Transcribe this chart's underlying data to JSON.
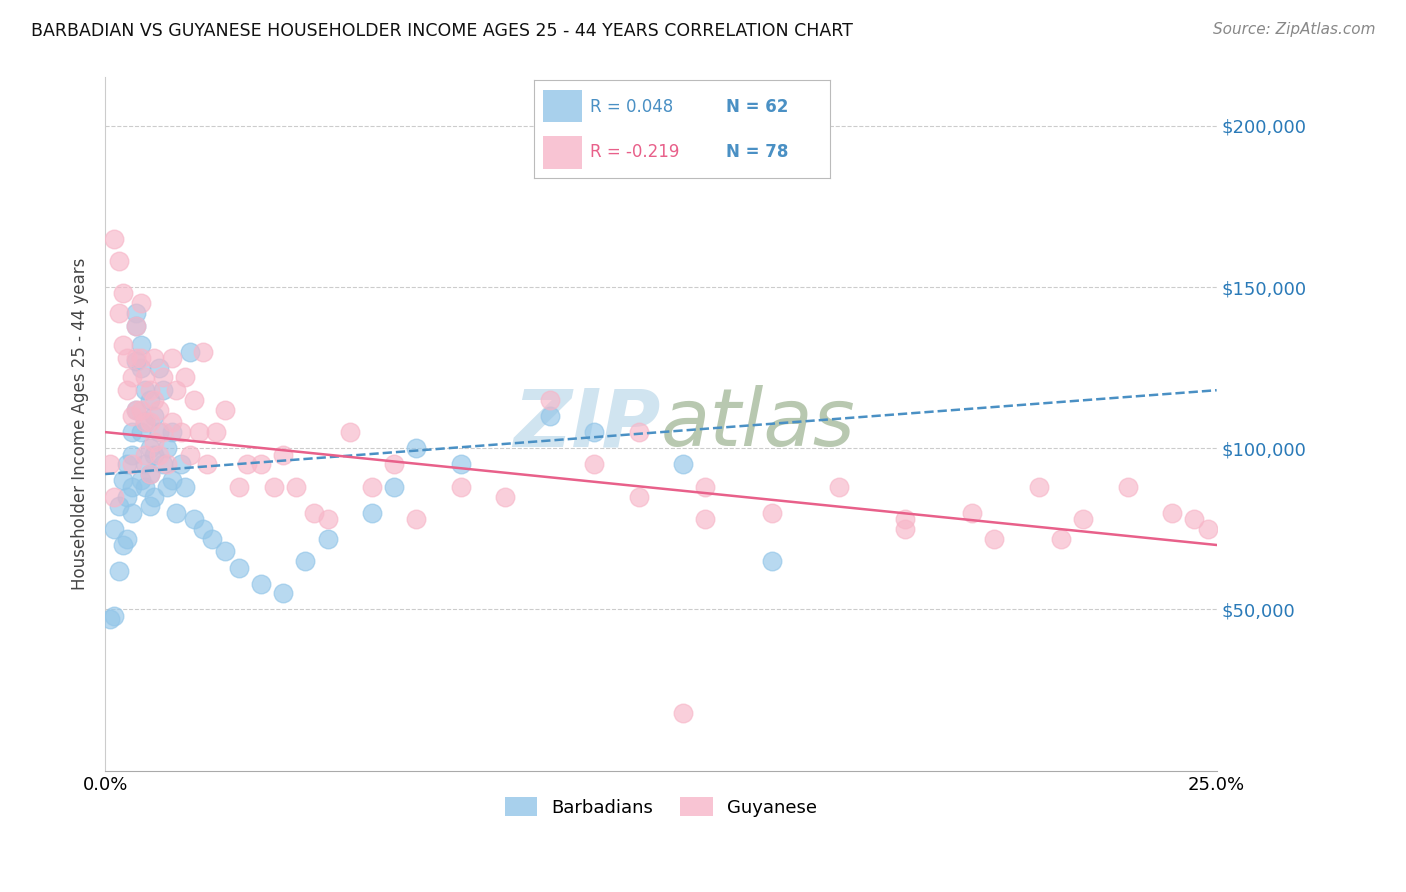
{
  "title": "BARBADIAN VS GUYANESE HOUSEHOLDER INCOME AGES 25 - 44 YEARS CORRELATION CHART",
  "source": "Source: ZipAtlas.com",
  "ylabel": "Householder Income Ages 25 - 44 years",
  "xlim": [
    0.0,
    0.25
  ],
  "ylim": [
    0,
    215000
  ],
  "xticks": [
    0.0,
    0.05,
    0.1,
    0.15,
    0.2,
    0.25
  ],
  "xtick_labels": [
    "0.0%",
    "",
    "",
    "",
    "",
    "25.0%"
  ],
  "ytick_values": [
    50000,
    100000,
    150000,
    200000
  ],
  "ytick_labels": [
    "$50,000",
    "$100,000",
    "$150,000",
    "$200,000"
  ],
  "barbadian_color": "#92c5e8",
  "guyanese_color": "#f7b6c8",
  "trendline_barbadian_color": "#4a90c4",
  "trendline_guyanese_color": "#e8608a",
  "watermark_color": "#d0e4f0",
  "legend_R1": "R = 0.048",
  "legend_N1": "N = 62",
  "legend_R2": "R = -0.219",
  "legend_N2": "N = 78",
  "R1_color": "#4a90c4",
  "N1_color": "#4a90c4",
  "R2_color": "#e8608a",
  "N2_color": "#4a90c4",
  "barbadian_x": [
    0.001,
    0.002,
    0.002,
    0.003,
    0.003,
    0.004,
    0.004,
    0.005,
    0.005,
    0.005,
    0.006,
    0.006,
    0.006,
    0.006,
    0.007,
    0.007,
    0.007,
    0.007,
    0.008,
    0.008,
    0.008,
    0.008,
    0.009,
    0.009,
    0.009,
    0.009,
    0.01,
    0.01,
    0.01,
    0.01,
    0.011,
    0.011,
    0.011,
    0.012,
    0.012,
    0.013,
    0.013,
    0.014,
    0.014,
    0.015,
    0.015,
    0.016,
    0.017,
    0.018,
    0.019,
    0.02,
    0.022,
    0.024,
    0.027,
    0.03,
    0.035,
    0.04,
    0.045,
    0.05,
    0.06,
    0.065,
    0.07,
    0.08,
    0.1,
    0.11,
    0.13,
    0.15
  ],
  "barbadian_y": [
    47000,
    48000,
    75000,
    62000,
    82000,
    70000,
    90000,
    85000,
    95000,
    72000,
    105000,
    98000,
    88000,
    80000,
    142000,
    138000,
    127000,
    112000,
    132000,
    125000,
    105000,
    90000,
    118000,
    108000,
    95000,
    88000,
    115000,
    100000,
    92000,
    82000,
    110000,
    98000,
    85000,
    125000,
    105000,
    118000,
    95000,
    100000,
    88000,
    105000,
    90000,
    80000,
    95000,
    88000,
    130000,
    78000,
    75000,
    72000,
    68000,
    63000,
    58000,
    55000,
    65000,
    72000,
    80000,
    88000,
    100000,
    95000,
    110000,
    105000,
    95000,
    65000
  ],
  "guyanese_x": [
    0.001,
    0.002,
    0.002,
    0.003,
    0.003,
    0.004,
    0.004,
    0.005,
    0.005,
    0.006,
    0.006,
    0.006,
    0.007,
    0.007,
    0.007,
    0.008,
    0.008,
    0.008,
    0.009,
    0.009,
    0.009,
    0.01,
    0.01,
    0.01,
    0.011,
    0.011,
    0.011,
    0.012,
    0.012,
    0.013,
    0.013,
    0.014,
    0.015,
    0.015,
    0.016,
    0.017,
    0.018,
    0.019,
    0.02,
    0.021,
    0.022,
    0.023,
    0.025,
    0.027,
    0.03,
    0.032,
    0.035,
    0.038,
    0.04,
    0.043,
    0.047,
    0.05,
    0.055,
    0.06,
    0.065,
    0.07,
    0.08,
    0.09,
    0.1,
    0.11,
    0.12,
    0.135,
    0.15,
    0.165,
    0.18,
    0.195,
    0.21,
    0.22,
    0.23,
    0.24,
    0.245,
    0.248,
    0.12,
    0.135,
    0.18,
    0.2,
    0.215,
    0.13
  ],
  "guyanese_y": [
    95000,
    85000,
    165000,
    158000,
    142000,
    148000,
    132000,
    128000,
    118000,
    122000,
    110000,
    95000,
    138000,
    128000,
    112000,
    145000,
    128000,
    112000,
    122000,
    108000,
    98000,
    118000,
    108000,
    92000,
    128000,
    115000,
    102000,
    112000,
    98000,
    122000,
    105000,
    95000,
    128000,
    108000,
    118000,
    105000,
    122000,
    98000,
    115000,
    105000,
    130000,
    95000,
    105000,
    112000,
    88000,
    95000,
    95000,
    88000,
    98000,
    88000,
    80000,
    78000,
    105000,
    88000,
    95000,
    78000,
    88000,
    85000,
    115000,
    95000,
    105000,
    88000,
    80000,
    88000,
    78000,
    80000,
    88000,
    78000,
    88000,
    80000,
    78000,
    75000,
    85000,
    78000,
    75000,
    72000,
    72000,
    18000
  ],
  "trendline_barb_y0": 92000,
  "trendline_barb_y1": 118000,
  "trendline_guya_y0": 105000,
  "trendline_guya_y1": 70000
}
